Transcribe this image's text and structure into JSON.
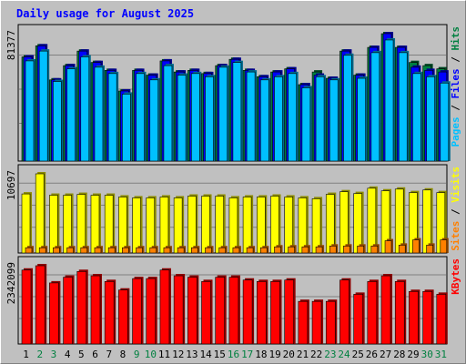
{
  "title": "Daily usage for August 2025",
  "days": [
    "1",
    "2",
    "3",
    "4",
    "5",
    "6",
    "7",
    "8",
    "9",
    "10",
    "11",
    "12",
    "13",
    "14",
    "15",
    "16",
    "17",
    "18",
    "19",
    "20",
    "21",
    "22",
    "23",
    "24",
    "25",
    "26",
    "27",
    "28",
    "29",
    "30",
    "31"
  ],
  "weekend_days": [
    "2",
    "3",
    "9",
    "10",
    "16",
    "17",
    "23",
    "24",
    "30",
    "31"
  ],
  "labels": {
    "hits": "Hits",
    "files": "Files",
    "pages": "Pages",
    "visits": "Visits",
    "sites": "Sites",
    "kbytes": "KBytes",
    "sep": " / "
  },
  "colors": {
    "hits": "#008040",
    "files": "#0000ff",
    "pages": "#00c0ff",
    "visits": "#ffff00",
    "sites": "#ff8000",
    "kbytes": "#ff0000",
    "title": "#0000ff",
    "grid": "#808080"
  },
  "chart_data": [
    {
      "type": "bar",
      "name": "hits-files-pages",
      "max_label": "81377",
      "ymax": 81377,
      "categories": [
        "1",
        "2",
        "3",
        "4",
        "5",
        "6",
        "7",
        "8",
        "9",
        "10",
        "11",
        "12",
        "13",
        "14",
        "15",
        "16",
        "17",
        "18",
        "19",
        "20",
        "21",
        "22",
        "23",
        "24",
        "25",
        "26",
        "27",
        "28",
        "29",
        "30",
        "31"
      ],
      "series": [
        {
          "name": "Hits",
          "values": [
            66545,
            73622,
            51853,
            60954,
            70252,
            62976,
            57920,
            44778,
            57920,
            54884,
            63986,
            56906,
            57920,
            55899,
            60954,
            64997,
            57920,
            53865,
            56906,
            58931,
            48823,
            56906,
            52870,
            70252,
            54884,
            72614,
            81377,
            72614,
            62976,
            60954,
            58931
          ]
        },
        {
          "name": "Files",
          "values": [
            66545,
            73622,
            51853,
            60954,
            70252,
            62976,
            57920,
            44778,
            57920,
            54884,
            63986,
            56906,
            57920,
            55899,
            60954,
            64997,
            57920,
            53865,
            56906,
            58931,
            48823,
            54884,
            52870,
            70252,
            54884,
            72614,
            81377,
            72614,
            59942,
            57920,
            56906
          ]
        },
        {
          "name": "Pages",
          "values": [
            63986,
            70252,
            50820,
            58931,
            66545,
            59942,
            55899,
            42758,
            55899,
            51853,
            60954,
            54884,
            55899,
            53865,
            59942,
            62976,
            56906,
            51853,
            53865,
            55899,
            46803,
            53865,
            51853,
            67553,
            52870,
            69244,
            77333,
            69244,
            55899,
            53865,
            49838
          ]
        }
      ]
    },
    {
      "type": "bar",
      "name": "sites-visits",
      "max_label": "10697",
      "ymax": 10697,
      "categories": [
        "1",
        "2",
        "3",
        "4",
        "5",
        "6",
        "7",
        "8",
        "9",
        "10",
        "11",
        "12",
        "13",
        "14",
        "15",
        "16",
        "17",
        "18",
        "19",
        "20",
        "21",
        "22",
        "23",
        "24",
        "25",
        "26",
        "27",
        "28",
        "29",
        "30",
        "31"
      ],
      "series": [
        {
          "name": "Visits",
          "values": [
            7980,
            10697,
            7803,
            7803,
            7922,
            7803,
            7803,
            7566,
            7448,
            7448,
            7566,
            7448,
            7685,
            7685,
            7685,
            7448,
            7566,
            7566,
            7685,
            7566,
            7448,
            7330,
            7922,
            8277,
            8040,
            8750,
            8395,
            8632,
            8159,
            8513,
            8159
          ]
        },
        {
          "name": "Sites",
          "values": [
            709,
            709,
            709,
            709,
            709,
            709,
            709,
            709,
            709,
            709,
            709,
            709,
            709,
            709,
            709,
            709,
            709,
            709,
            827,
            827,
            827,
            827,
            945,
            945,
            945,
            945,
            1654,
            1063,
            1772,
            1063,
            1772
          ]
        }
      ]
    },
    {
      "type": "bar",
      "name": "kbytes",
      "max_label": "2342099",
      "ymax": 2342099,
      "categories": [
        "1",
        "2",
        "3",
        "4",
        "5",
        "6",
        "7",
        "8",
        "9",
        "10",
        "11",
        "12",
        "13",
        "14",
        "15",
        "16",
        "17",
        "18",
        "19",
        "20",
        "21",
        "22",
        "23",
        "24",
        "25",
        "26",
        "27",
        "28",
        "29",
        "30",
        "31"
      ],
      "series": [
        {
          "name": "KBytes",
          "values": [
            2212538,
            2342099,
            1827839,
            1999270,
            2170700,
            2041128,
            1870181,
            1614957,
            1956938,
            1956938,
            2213026,
            2041128,
            1999270,
            1870181,
            1999270,
            1999270,
            1913822,
            1870181,
            1870181,
            1913822,
            1275154,
            1275154,
            1275154,
            1913822,
            1487628,
            1870181,
            2041128,
            1870181,
            1572125,
            1572125,
            1487628
          ]
        }
      ]
    }
  ]
}
